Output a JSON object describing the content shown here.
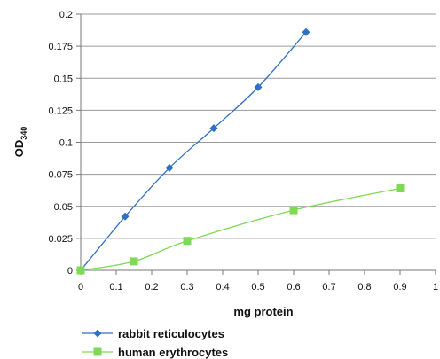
{
  "chart_data": {
    "type": "scatter",
    "xlabel": "mg protein",
    "ylabel_main": "OD",
    "ylabel_sub": "340",
    "xlim": [
      0,
      1
    ],
    "ylim": [
      0,
      0.2
    ],
    "x_ticks": [
      "0",
      "0.1",
      "0.2",
      "0.3",
      "0.4",
      "0.5",
      "0.6",
      "0.7",
      "0.8",
      "0.9",
      "1"
    ],
    "x_tick_values": [
      0,
      0.1,
      0.2,
      0.3,
      0.4,
      0.5,
      0.6,
      0.7,
      0.8,
      0.9,
      1.0
    ],
    "y_ticks": [
      "0",
      "0.025",
      "0.05",
      "0.075",
      "0.1",
      "0.125",
      "0.15",
      "0.175",
      "0.2"
    ],
    "y_tick_values": [
      0,
      0.025,
      0.05,
      0.075,
      0.1,
      0.125,
      0.15,
      0.175,
      0.2
    ],
    "grid": "horizontal",
    "legend_position": "bottom",
    "series": [
      {
        "name": "rabbit reticulocytes",
        "color": "#2f6fc4",
        "marker": "diamond",
        "x": [
          0,
          0.125,
          0.25,
          0.375,
          0.5,
          0.635
        ],
        "y": [
          0,
          0.042,
          0.08,
          0.111,
          0.143,
          0.186
        ]
      },
      {
        "name": "human erythrocytes",
        "color": "#7ed957",
        "marker": "square",
        "x": [
          0,
          0.15,
          0.3,
          0.6,
          0.9
        ],
        "y": [
          0,
          0.007,
          0.023,
          0.047,
          0.064
        ]
      }
    ]
  }
}
